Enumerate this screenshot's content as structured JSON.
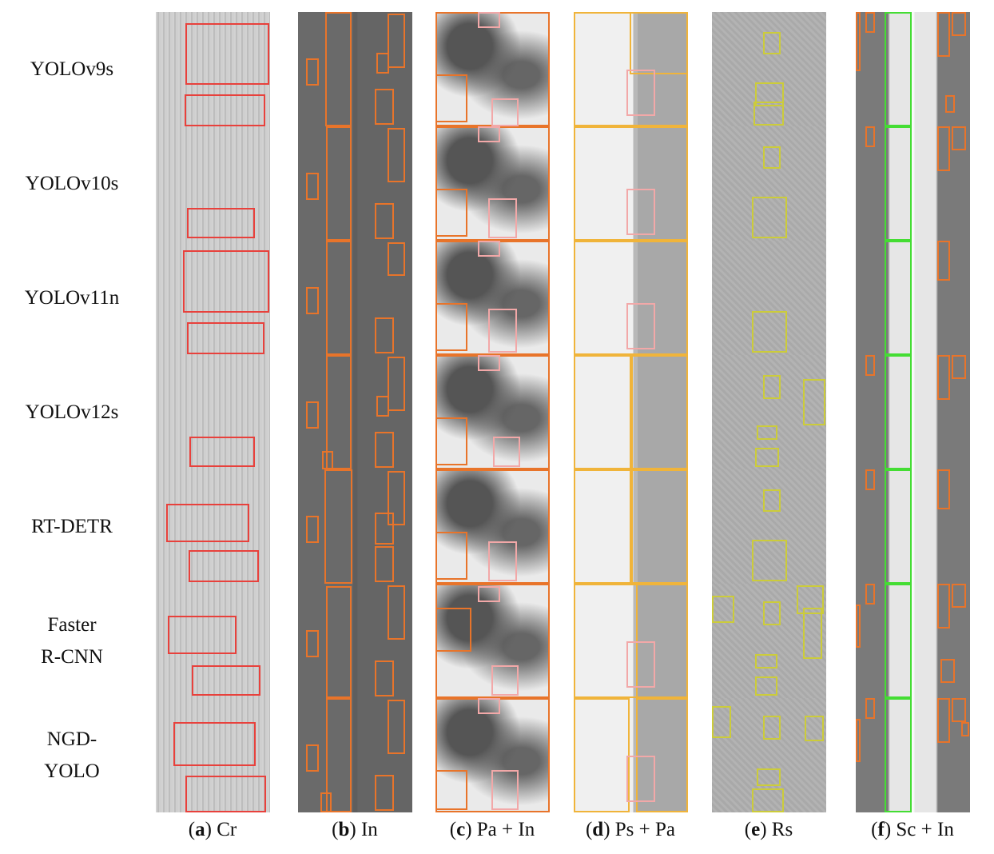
{
  "rows": [
    "YOLOv9s",
    "YOLOv10s",
    "YOLOv11n",
    "YOLOv12s",
    "RT-DETR",
    "Faster\nR-CNN",
    "NGD-\nYOLO"
  ],
  "columns": [
    {
      "letter": "a",
      "name": "Cr"
    },
    {
      "letter": "b",
      "name": "In"
    },
    {
      "letter": "c",
      "name": "Pa + In"
    },
    {
      "letter": "d",
      "name": "Ps + Pa"
    },
    {
      "letter": "e",
      "name": "Rs"
    },
    {
      "letter": "f",
      "name": "Sc + In"
    }
  ],
  "colors": {
    "cr": "#e8413c",
    "in": "#e8742a",
    "pa": "#f2a8a8",
    "ps": "#f0b43a",
    "rs": "#cccc3a",
    "sc": "#44dd33"
  }
}
